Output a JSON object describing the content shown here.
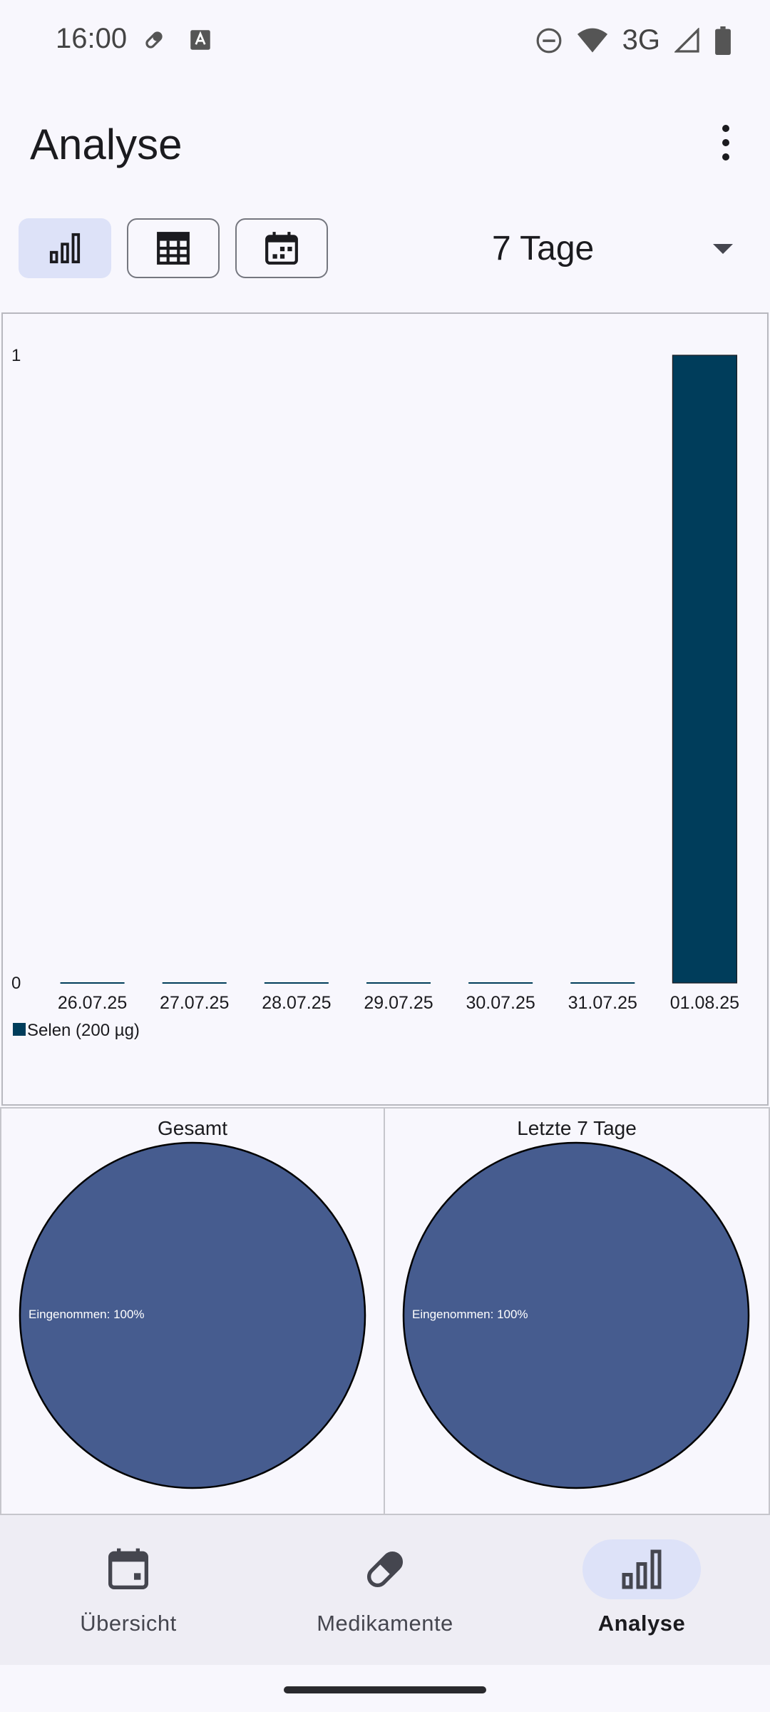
{
  "status_bar": {
    "time": "16:00",
    "network": "3G",
    "icons": [
      "pill-icon",
      "a-keyboard-icon",
      "dnd-icon",
      "wifi-icon",
      "signal-icon",
      "battery-icon"
    ]
  },
  "app_bar": {
    "title": "Analyse",
    "more_icon": "more-vert-icon"
  },
  "view_toggle": {
    "options": [
      {
        "id": "chart",
        "icon": "bar-chart-icon",
        "selected": true
      },
      {
        "id": "table",
        "icon": "table-icon",
        "selected": false
      },
      {
        "id": "calendar",
        "icon": "calendar-icon",
        "selected": false
      }
    ]
  },
  "range_select": {
    "value": "7 Tage"
  },
  "chart_data": {
    "type": "bar",
    "categories": [
      "26.07.25",
      "27.07.25",
      "28.07.25",
      "29.07.25",
      "30.07.25",
      "31.07.25",
      "01.08.25"
    ],
    "series": [
      {
        "name": "Selen (200 µg)",
        "values": [
          0,
          0,
          0,
          0,
          0,
          0,
          1
        ],
        "color": "#003d5b"
      }
    ],
    "ylim": [
      0,
      1
    ],
    "yticks": [
      "0",
      "1"
    ],
    "legend": "bottom-left",
    "grid": false
  },
  "pie_charts": [
    {
      "title": "Gesamt",
      "slices": [
        {
          "label": "Eingenommen",
          "value": 100,
          "text": "Eingenommen: 100%",
          "color": "#465c8f"
        }
      ]
    },
    {
      "title": "Letzte 7 Tage",
      "slices": [
        {
          "label": "Eingenommen",
          "value": 100,
          "text": "Eingenommen: 100%",
          "color": "#465c8f"
        }
      ]
    }
  ],
  "bottom_nav": {
    "items": [
      {
        "label": "Übersicht",
        "icon": "calendar-icon",
        "active": false
      },
      {
        "label": "Medikamente",
        "icon": "pill-icon",
        "active": false
      },
      {
        "label": "Analyse",
        "icon": "bar-chart-icon",
        "active": true
      }
    ]
  },
  "colors": {
    "background": "#f8f7fd",
    "accent_container": "#dde2f8",
    "bar": "#003d5b",
    "pie": "#465c8f"
  }
}
